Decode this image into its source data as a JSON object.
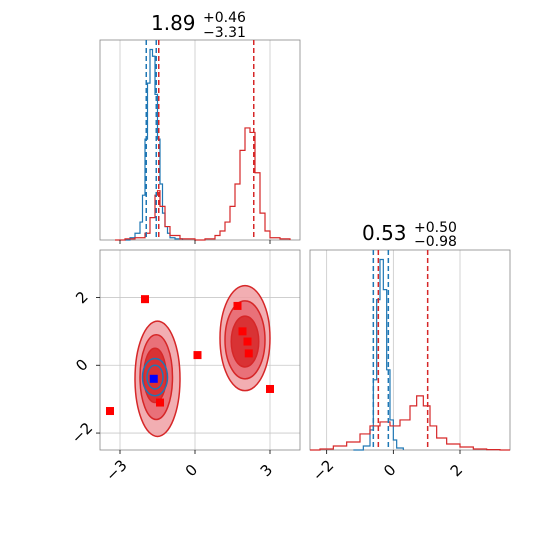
{
  "colors": {
    "blue": "#1f77b4",
    "red": "#d62728",
    "marker_red": "#ff0000",
    "marker_blue": "#0000ff",
    "grid": "#c8c8c8",
    "contour_light": "#f0a0a4",
    "contour_mid": "#e8666e",
    "contour_dark": "#d62728"
  },
  "chart_data": [
    {
      "panel": "marginal-1",
      "type": "line",
      "title": {
        "value": "1.89",
        "plus": "+0.46",
        "minus": "−3.31"
      },
      "xlim": [
        -3.8,
        4.2
      ],
      "grid": true,
      "series": [
        {
          "color": "#1f77b4",
          "x": [
            -2.8,
            -2.6,
            -2.4,
            -2.2,
            -2.1,
            -2.0,
            -1.9,
            -1.8,
            -1.7,
            -1.6,
            -1.5,
            -1.4,
            -1.3,
            -1.2,
            -1.1,
            -1.0,
            -0.8,
            -0.5
          ],
          "y": [
            0,
            0.01,
            0.03,
            0.08,
            0.2,
            0.45,
            0.7,
            0.85,
            0.82,
            0.65,
            0.45,
            0.25,
            0.12,
            0.06,
            0.03,
            0.01,
            0.005,
            0
          ]
        },
        {
          "color": "#d62728",
          "x": [
            -3.2,
            -2.8,
            -2.4,
            -2.0,
            -1.8,
            -1.6,
            -1.5,
            -1.4,
            -1.2,
            -1.0,
            -0.6,
            0,
            0.4,
            0.8,
            1.0,
            1.2,
            1.4,
            1.6,
            1.8,
            2.0,
            2.2,
            2.4,
            2.6,
            2.8,
            3.0,
            3.4,
            3.8
          ],
          "y": [
            0,
            0.005,
            0.01,
            0.03,
            0.1,
            0.2,
            0.22,
            0.15,
            0.06,
            0.02,
            0.005,
            0,
            0.005,
            0.02,
            0.04,
            0.08,
            0.15,
            0.25,
            0.4,
            0.5,
            0.48,
            0.3,
            0.12,
            0.04,
            0.01,
            0.005,
            0
          ]
        }
      ],
      "vlines": [
        {
          "x": -1.95,
          "color": "#1f77b4"
        },
        {
          "x": -1.55,
          "color": "#1f77b4"
        },
        {
          "x": -1.45,
          "color": "#d62728"
        },
        {
          "x": 2.35,
          "color": "#d62728"
        }
      ]
    },
    {
      "panel": "marginal-2",
      "type": "line",
      "title": {
        "value": "0.53",
        "plus": "+0.50",
        "minus": "−0.98"
      },
      "xlim": [
        -2.5,
        3.5
      ],
      "xticks": [
        "−2",
        "0",
        "2"
      ],
      "xtick_values": [
        -2,
        0,
        2
      ],
      "grid": true,
      "series": [
        {
          "color": "#1f77b4",
          "x": [
            -1.2,
            -0.9,
            -0.7,
            -0.6,
            -0.5,
            -0.4,
            -0.3,
            -0.2,
            -0.1,
            0,
            0.1,
            0.3
          ],
          "y": [
            0,
            0.02,
            0.1,
            0.35,
            0.75,
            0.95,
            0.8,
            0.4,
            0.15,
            0.05,
            0.01,
            0
          ]
        },
        {
          "color": "#d62728",
          "x": [
            -2.5,
            -2.2,
            -1.8,
            -1.4,
            -1.0,
            -0.7,
            -0.4,
            -0.1,
            0.2,
            0.5,
            0.7,
            0.9,
            1.1,
            1.3,
            1.6,
            2.0,
            2.4,
            2.8,
            3.2,
            3.5
          ],
          "y": [
            0,
            0.005,
            0.02,
            0.04,
            0.08,
            0.12,
            0.14,
            0.12,
            0.15,
            0.22,
            0.27,
            0.22,
            0.12,
            0.06,
            0.03,
            0.015,
            0.005,
            0.002,
            0,
            0
          ]
        }
      ],
      "vlines": [
        {
          "x": -0.6,
          "color": "#1f77b4"
        },
        {
          "x": -0.15,
          "color": "#1f77b4"
        },
        {
          "x": -0.45,
          "color": "#d62728"
        },
        {
          "x": 1.03,
          "color": "#d62728"
        }
      ]
    },
    {
      "panel": "joint",
      "type": "scatter",
      "xlim": [
        -3.8,
        4.2
      ],
      "ylim": [
        -2.5,
        3.4
      ],
      "xticks": [
        "−3",
        "0",
        "3"
      ],
      "xtick_values": [
        -3,
        0,
        3
      ],
      "yticks": [
        "−2",
        "0",
        "2"
      ],
      "ytick_values": [
        -2,
        0,
        2
      ],
      "grid": true,
      "contours": [
        {
          "cx": -1.5,
          "cy": -0.4,
          "rx": 0.9,
          "ry": 1.7,
          "level": "outer"
        },
        {
          "cx": -1.55,
          "cy": -0.35,
          "rx": 0.65,
          "ry": 1.25,
          "level": "mid"
        },
        {
          "cx": -1.6,
          "cy": -0.3,
          "rx": 0.45,
          "ry": 0.8,
          "level": "inner"
        },
        {
          "cx": 2.0,
          "cy": 0.8,
          "rx": 1.0,
          "ry": 1.55,
          "level": "outer"
        },
        {
          "cx": 2.0,
          "cy": 0.75,
          "rx": 0.8,
          "ry": 1.15,
          "level": "mid"
        },
        {
          "cx": 2.0,
          "cy": 0.7,
          "rx": 0.55,
          "ry": 0.75,
          "level": "inner"
        }
      ],
      "blue_contours": [
        {
          "cx": -1.6,
          "cy": -0.35,
          "rx": 0.5,
          "ry": 0.55
        },
        {
          "cx": -1.6,
          "cy": -0.35,
          "rx": 0.32,
          "ry": 0.35
        }
      ],
      "red_points": [
        {
          "x": -2.0,
          "y": 1.95
        },
        {
          "x": -3.4,
          "y": -1.35
        },
        {
          "x": -1.4,
          "y": -1.1
        },
        {
          "x": 0.1,
          "y": 0.3
        },
        {
          "x": 1.7,
          "y": 1.75
        },
        {
          "x": 1.9,
          "y": 1.0
        },
        {
          "x": 2.1,
          "y": 0.7
        },
        {
          "x": 2.15,
          "y": 0.35
        },
        {
          "x": 3.0,
          "y": -0.7
        }
      ],
      "blue_points": [
        {
          "x": -1.65,
          "y": -0.4
        }
      ]
    }
  ]
}
